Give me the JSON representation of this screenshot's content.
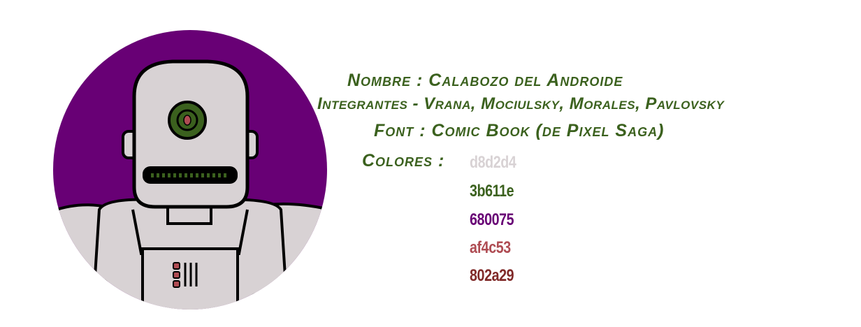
{
  "logo": {
    "name": "robot-avatar",
    "colors": {
      "background": "#680075",
      "body": "#d8d2d4",
      "eye": "#3b611e",
      "pupil": "#af4c53",
      "outline": "#000000"
    }
  },
  "info": {
    "nombre": {
      "label": "Nombre :",
      "value": "Calabozo del Androide"
    },
    "integrantes": {
      "label": "Integrantes -",
      "value": "Vrana, Mociulsky, Morales, Pavlovsky"
    },
    "font": {
      "label": "Font :",
      "value": "Comic Book (de Pixel Saga)"
    },
    "colores": {
      "label": "Colores :",
      "swatches": [
        {
          "code": "d8d2d4",
          "color": "#d8d2d4"
        },
        {
          "code": "3b611e",
          "color": "#3b611e"
        },
        {
          "code": "680075",
          "color": "#680075"
        },
        {
          "code": "af4c53",
          "color": "#af4c53"
        },
        {
          "code": "802a29",
          "color": "#802a29"
        }
      ]
    }
  }
}
